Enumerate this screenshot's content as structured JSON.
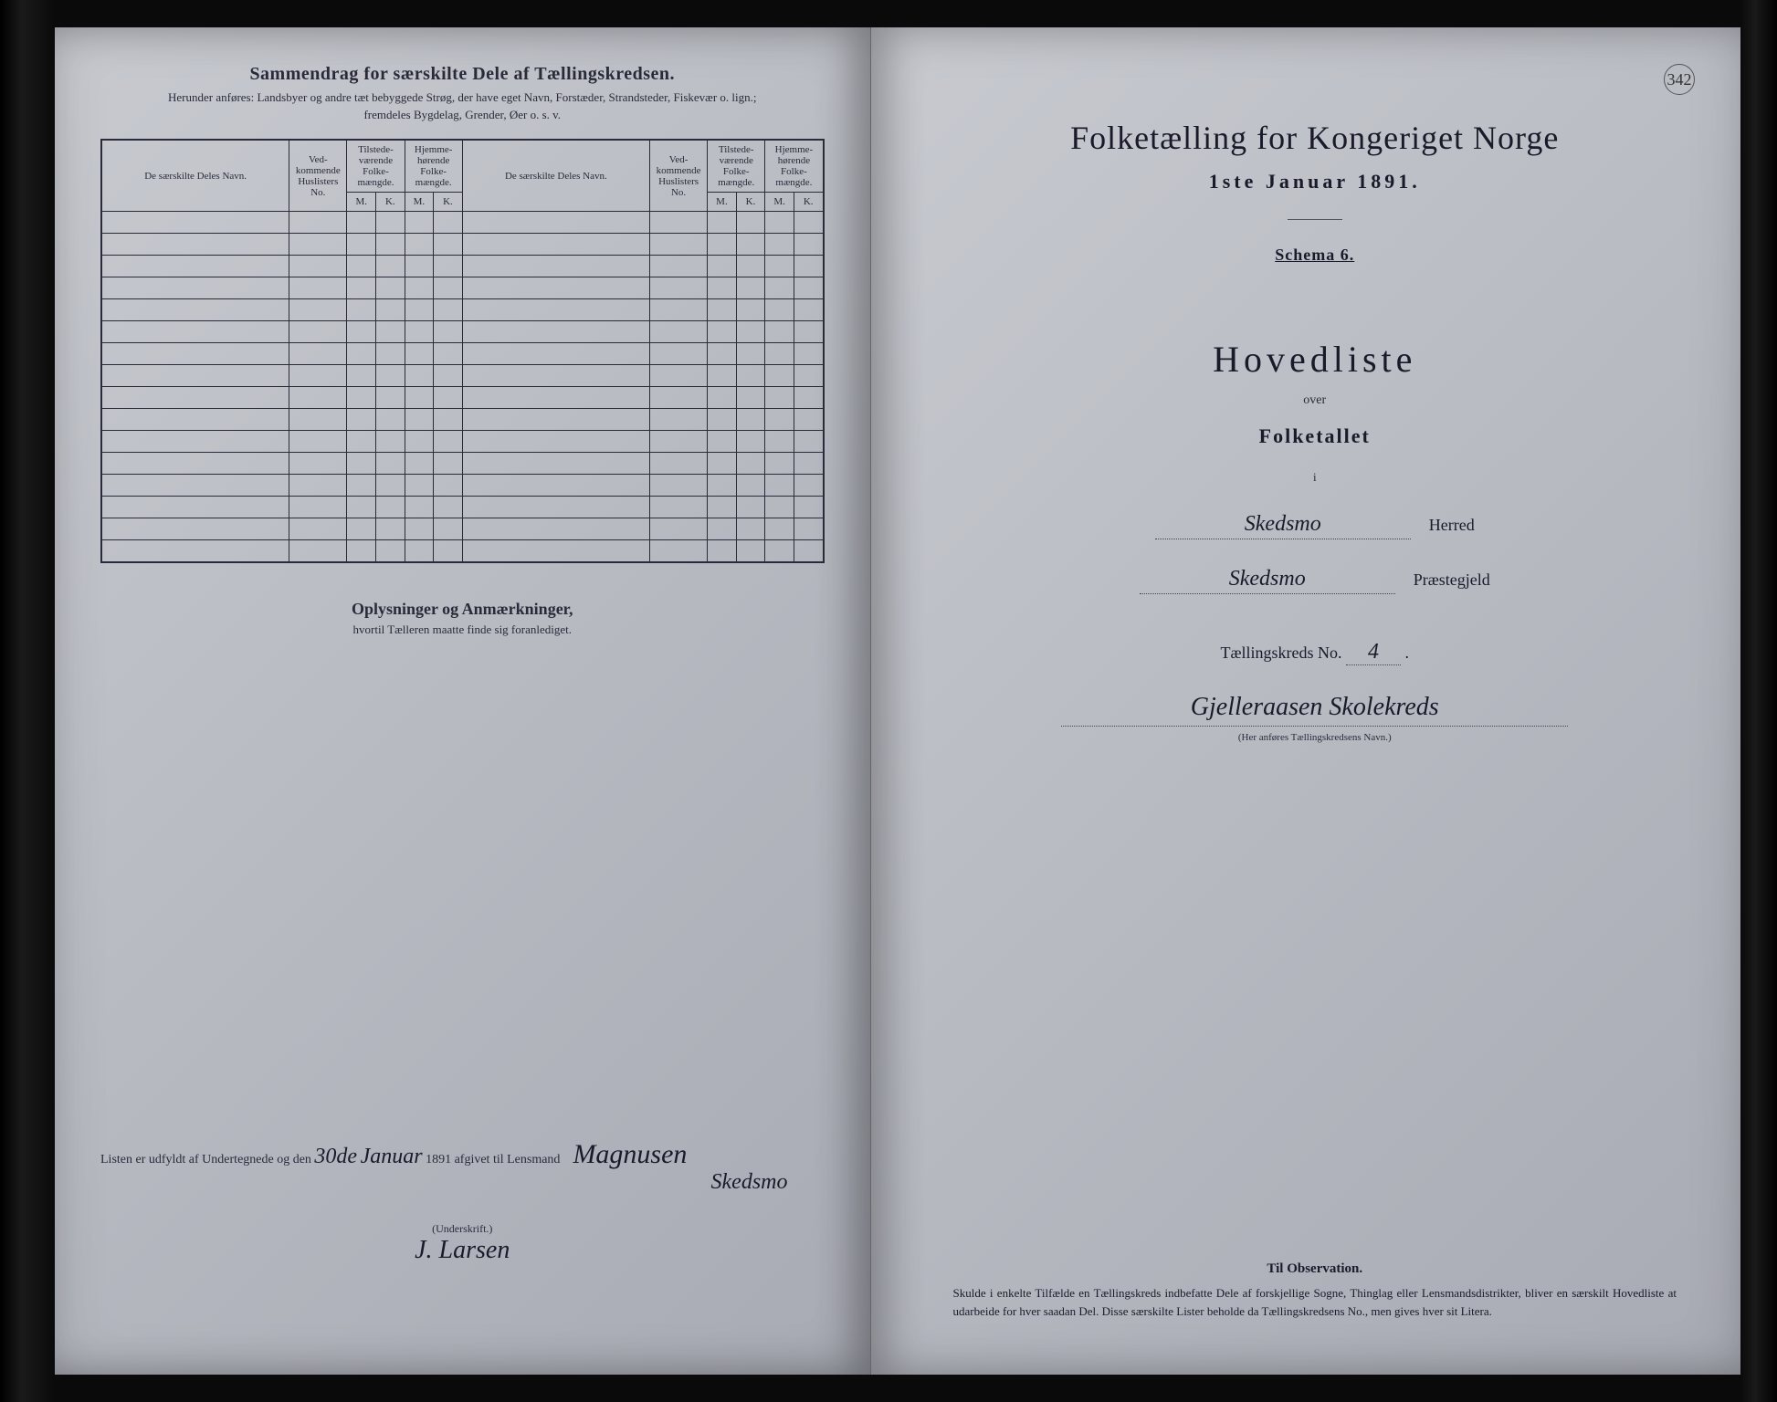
{
  "page_number": "342",
  "left": {
    "summary_title": "Sammendrag for særskilte Dele af Tællingskredsen.",
    "summary_sub1": "Herunder anføres:  Landsbyer og andre tæt bebyggede Strøg, der have eget Navn, Forstæder, Strandsteder, Fiskevær o. lign.;",
    "summary_sub2": "fremdeles Bygdelag, Grender, Øer o. s. v.",
    "columns": {
      "name": "De særskilte Deles Navn.",
      "huslister": "Ved-kommende Huslisters No.",
      "tilstede": "Tilstede-værende Folke-mængde.",
      "hjemme": "Hjemme-hørende Folke-mængde.",
      "m": "M.",
      "k": "K."
    },
    "row_count": 16,
    "notes_title": "Oplysninger og Anmærkninger,",
    "notes_sub": "hvortil Tælleren maatte finde sig foranlediget.",
    "sign_prefix": "Listen er udfyldt af Undertegnede og den",
    "sign_date_day": "30de",
    "sign_date_month": "Januar",
    "sign_year_suffix": "1891 afgivet til Lensmand",
    "signature1": "Magnusen",
    "signature1_place": "Skedsmo",
    "underscript": "(Underskrift.)",
    "signature2": "J. Larsen"
  },
  "right": {
    "main_title": "Folketælling for Kongeriget Norge",
    "date_line": "1ste Januar 1891.",
    "schema": "Schema 6.",
    "hovedliste": "Hovedliste",
    "over": "over",
    "folketallet": "Folketallet",
    "i": "i",
    "herred_value": "Skedsmo",
    "herred_label": "Herred",
    "praestegjeld_value": "Skedsmo",
    "praestegjeld_label": "Præstegjeld",
    "tk_label": "Tællingskreds No.",
    "tk_no": "4",
    "kreds_name": "Gjelleraasen Skolekreds",
    "kreds_caption": "(Her anføres Tællingskredsens Navn.)",
    "obs_title": "Til Observation.",
    "obs_body": "Skulde i enkelte Tilfælde en Tællingskreds indbefatte Dele af forskjellige Sogne, Thinglag eller Lensmandsdistrikter, bliver en særskilt Hovedliste at udarbeide for hver saadan Del. Disse særskilte Lister beholde da Tællingskredsens No., men gives hver sit Litera."
  },
  "colors": {
    "paper": "#b8bac2",
    "ink": "#2a2a3a",
    "background": "#0a0a0a"
  }
}
